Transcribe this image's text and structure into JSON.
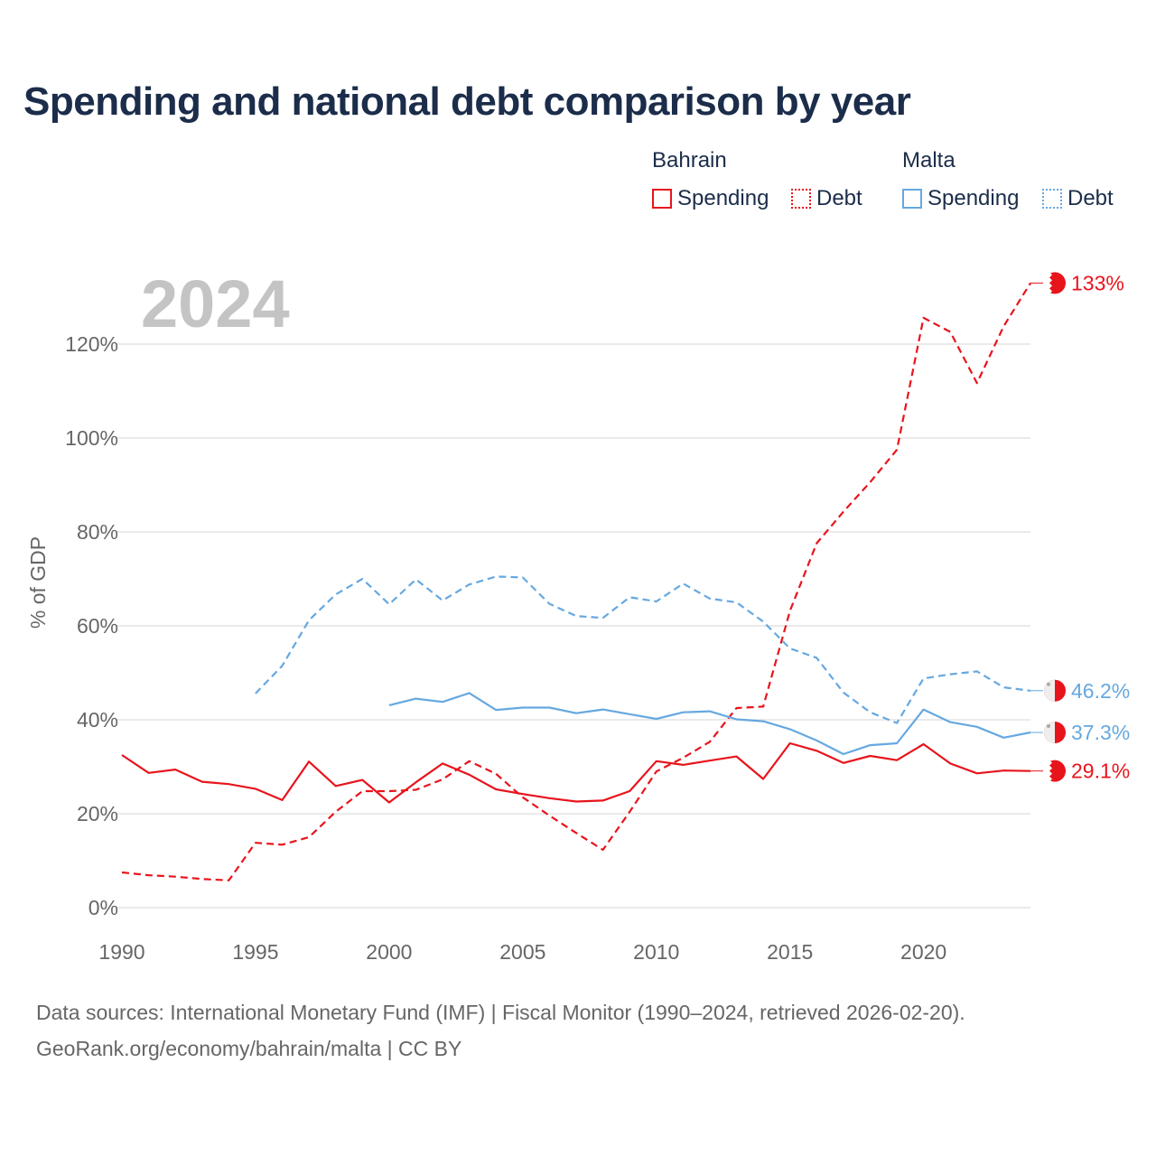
{
  "title": "Spending and national debt comparison by year",
  "legend": {
    "groups": [
      {
        "name": "Bahrain",
        "color": "#e8141c",
        "items": [
          {
            "label": "Spending",
            "style": "solid"
          },
          {
            "label": "Debt",
            "style": "dotted"
          }
        ]
      },
      {
        "name": "Malta",
        "color": "#66a8e0",
        "items": [
          {
            "label": "Spending",
            "style": "solid"
          },
          {
            "label": "Debt",
            "style": "dotted"
          }
        ]
      }
    ]
  },
  "year_label": "2024",
  "footer": {
    "line1": "Data sources: International Monetary Fund (IMF) | Fiscal Monitor (1990–2024, retrieved 2026-02-20).",
    "line2": "GeoRank.org/economy/bahrain/malta | CC BY"
  },
  "chart_data": {
    "type": "line",
    "title": "Spending and national debt comparison by year",
    "xlabel": "",
    "ylabel": "% of GDP",
    "xlim": [
      1990,
      2024
    ],
    "ylim": [
      0,
      135
    ],
    "x_ticks": [
      1990,
      1995,
      2000,
      2005,
      2010,
      2015,
      2020
    ],
    "x_tick_labels": [
      "1990",
      "1995",
      "2000",
      "2005",
      "2010",
      "2015",
      "2020"
    ],
    "y_ticks": [
      0,
      20,
      40,
      60,
      80,
      100,
      120
    ],
    "y_tick_labels": [
      "0%",
      "20%",
      "40%",
      "60%",
      "80%",
      "100%",
      "120%"
    ],
    "grid": true,
    "series": [
      {
        "name": "Bahrain Spending",
        "country": "Bahrain",
        "metric": "Spending",
        "color": "#e8141c",
        "dash": "solid",
        "start_year": 1990,
        "values": [
          32.5,
          28.7,
          29.4,
          26.8,
          26.3,
          25.3,
          22.9,
          31.1,
          25.9,
          27.2,
          22.4,
          26.7,
          30.7,
          28.3,
          25.2,
          24.2,
          23.3,
          22.6,
          22.8,
          24.8,
          31.2,
          30.4,
          31.3,
          32.2,
          27.4,
          35.0,
          33.4,
          30.8,
          32.3,
          31.4,
          34.8,
          30.7,
          28.6,
          29.2,
          29.1
        ],
        "end_label": "29.1%"
      },
      {
        "name": "Bahrain Debt",
        "country": "Bahrain",
        "metric": "Debt",
        "color": "#e8141c",
        "dash": "dashed",
        "start_year": 1990,
        "values": [
          7.5,
          6.9,
          6.6,
          6.1,
          5.8,
          13.8,
          13.4,
          15.0,
          20.4,
          24.8,
          24.8,
          25.1,
          27.3,
          31.2,
          28.5,
          23.5,
          19.6,
          15.9,
          12.3,
          20.4,
          29.0,
          31.9,
          35.3,
          42.5,
          42.8,
          63.2,
          77.6,
          84.3,
          90.6,
          97.5,
          125.6,
          122.6,
          111.7,
          123.8,
          133.0
        ],
        "end_label": "133%"
      },
      {
        "name": "Malta Spending",
        "country": "Malta",
        "metric": "Spending",
        "color": "#66a8e0",
        "dash": "solid",
        "start_year": 2000,
        "values": [
          43.1,
          44.5,
          43.8,
          45.7,
          42.1,
          42.6,
          42.6,
          41.4,
          42.2,
          41.2,
          40.2,
          41.6,
          41.8,
          40.1,
          39.7,
          38.0,
          35.6,
          32.7,
          34.6,
          35.0,
          42.2,
          39.5,
          38.5,
          36.2,
          37.3
        ],
        "end_label": "37.3%"
      },
      {
        "name": "Malta Debt",
        "country": "Malta",
        "metric": "Debt",
        "color": "#66a8e0",
        "dash": "dashed",
        "start_year": 1995,
        "values": [
          45.6,
          51.5,
          61.2,
          66.7,
          70.0,
          64.6,
          69.9,
          65.4,
          68.8,
          70.5,
          70.3,
          64.7,
          62.1,
          61.7,
          66.1,
          65.2,
          69.0,
          65.8,
          65.0,
          60.9,
          55.2,
          53.2,
          45.8,
          41.6,
          39.3,
          48.8,
          49.7,
          50.3,
          46.9,
          46.2
        ],
        "end_label": "46.2%"
      }
    ]
  }
}
